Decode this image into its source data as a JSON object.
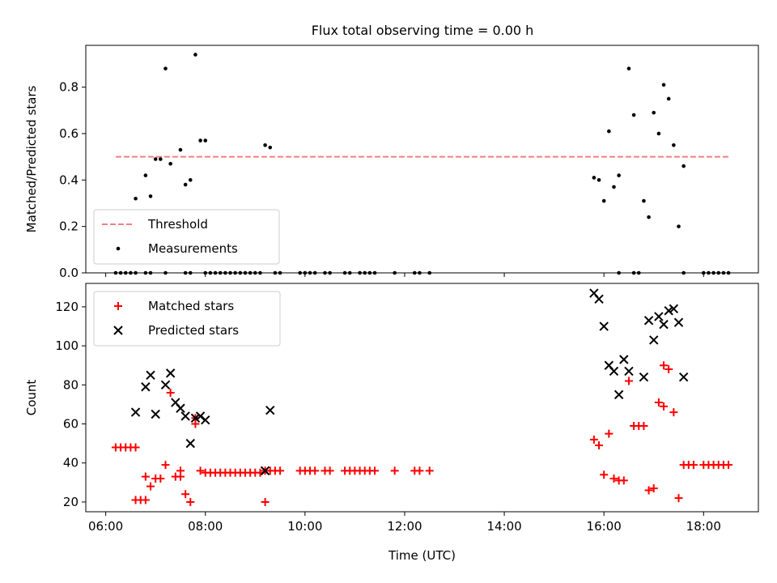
{
  "title": "Flux total observing time = 0.00 h",
  "chart_data": [
    {
      "type": "scatter",
      "title": "Flux total observing time = 0.00 h",
      "ylabel": "Matched/Predicted stars",
      "xlabel": "",
      "xlim": [
        "05:36",
        "19:06"
      ],
      "ylim": [
        0,
        0.98
      ],
      "x_ticks": [
        "06:00",
        "08:00",
        "10:00",
        "12:00",
        "14:00",
        "16:00",
        "18:00"
      ],
      "y_ticks": [
        "0.0",
        "0.2",
        "0.4",
        "0.6",
        "0.8"
      ],
      "grid": false,
      "legend_position": "lower left",
      "threshold": {
        "name": "Threshold",
        "value": 0.5,
        "x_range": [
          "06:12",
          "18:30"
        ],
        "color": "#f08080",
        "style": "dashed"
      },
      "series": [
        {
          "name": "Measurements",
          "marker": "dot",
          "color": "#000000",
          "points": [
            [
              "06:36",
              0.32
            ],
            [
              "06:48",
              0.42
            ],
            [
              "06:54",
              0.33
            ],
            [
              "07:00",
              0.49
            ],
            [
              "07:06",
              0.49
            ],
            [
              "07:12",
              0.88
            ],
            [
              "07:18",
              0.47
            ],
            [
              "07:30",
              0.53
            ],
            [
              "07:36",
              0.38
            ],
            [
              "07:42",
              0.4
            ],
            [
              "07:48",
              0.94
            ],
            [
              "07:54",
              0.57
            ],
            [
              "08:00",
              0.57
            ],
            [
              "09:12",
              0.55
            ],
            [
              "09:18",
              0.54
            ],
            [
              "15:48",
              0.41
            ],
            [
              "15:54",
              0.4
            ],
            [
              "16:00",
              0.31
            ],
            [
              "16:06",
              0.61
            ],
            [
              "16:12",
              0.37
            ],
            [
              "16:18",
              0.42
            ],
            [
              "16:30",
              0.88
            ],
            [
              "16:36",
              0.68
            ],
            [
              "16:48",
              0.31
            ],
            [
              "16:54",
              0.24
            ],
            [
              "17:00",
              0.69
            ],
            [
              "17:06",
              0.6
            ],
            [
              "17:12",
              0.81
            ],
            [
              "17:18",
              0.75
            ],
            [
              "17:24",
              0.55
            ],
            [
              "17:30",
              0.2
            ],
            [
              "17:36",
              0.46
            ],
            [
              "06:12",
              0.0
            ],
            [
              "06:18",
              0.0
            ],
            [
              "06:24",
              0.0
            ],
            [
              "06:30",
              0.0
            ],
            [
              "06:36",
              0.0
            ],
            [
              "06:48",
              0.0
            ],
            [
              "06:54",
              0.0
            ],
            [
              "07:12",
              0.0
            ],
            [
              "07:36",
              0.0
            ],
            [
              "07:42",
              0.0
            ],
            [
              "08:00",
              0.0
            ],
            [
              "08:06",
              0.0
            ],
            [
              "08:12",
              0.0
            ],
            [
              "08:18",
              0.0
            ],
            [
              "08:24",
              0.0
            ],
            [
              "08:30",
              0.0
            ],
            [
              "08:36",
              0.0
            ],
            [
              "08:42",
              0.0
            ],
            [
              "08:48",
              0.0
            ],
            [
              "08:54",
              0.0
            ],
            [
              "09:00",
              0.0
            ],
            [
              "09:06",
              0.0
            ],
            [
              "09:24",
              0.0
            ],
            [
              "09:30",
              0.0
            ],
            [
              "09:54",
              0.0
            ],
            [
              "10:00",
              0.0
            ],
            [
              "10:06",
              0.0
            ],
            [
              "10:12",
              0.0
            ],
            [
              "10:24",
              0.0
            ],
            [
              "10:30",
              0.0
            ],
            [
              "10:48",
              0.0
            ],
            [
              "10:54",
              0.0
            ],
            [
              "11:06",
              0.0
            ],
            [
              "11:12",
              0.0
            ],
            [
              "11:18",
              0.0
            ],
            [
              "11:24",
              0.0
            ],
            [
              "11:48",
              0.0
            ],
            [
              "12:12",
              0.0
            ],
            [
              "12:18",
              0.0
            ],
            [
              "12:30",
              0.0
            ],
            [
              "16:18",
              0.0
            ],
            [
              "16:36",
              0.0
            ],
            [
              "16:42",
              0.0
            ],
            [
              "17:36",
              0.0
            ],
            [
              "18:00",
              0.0
            ],
            [
              "18:06",
              0.0
            ],
            [
              "18:12",
              0.0
            ],
            [
              "18:18",
              0.0
            ],
            [
              "18:24",
              0.0
            ],
            [
              "18:30",
              0.0
            ]
          ]
        }
      ]
    },
    {
      "type": "scatter",
      "title": "",
      "ylabel": "Count",
      "xlabel": "Time (UTC)",
      "xlim": [
        "05:36",
        "19:06"
      ],
      "ylim": [
        15,
        132
      ],
      "x_ticks": [
        "06:00",
        "08:00",
        "10:00",
        "12:00",
        "14:00",
        "16:00",
        "18:00"
      ],
      "y_ticks": [
        "20",
        "40",
        "60",
        "80",
        "100",
        "120"
      ],
      "grid": false,
      "legend_position": "upper left",
      "series": [
        {
          "name": "Matched stars",
          "marker": "plus",
          "color": "#ff0000",
          "points": [
            [
              "06:12",
              48
            ],
            [
              "06:18",
              48
            ],
            [
              "06:24",
              48
            ],
            [
              "06:30",
              48
            ],
            [
              "06:36",
              48
            ],
            [
              "06:36",
              21
            ],
            [
              "06:42",
              21
            ],
            [
              "06:48",
              21
            ],
            [
              "06:48",
              33
            ],
            [
              "06:54",
              28
            ],
            [
              "07:00",
              32
            ],
            [
              "07:06",
              32
            ],
            [
              "07:12",
              39
            ],
            [
              "07:18",
              76
            ],
            [
              "07:24",
              33
            ],
            [
              "07:30",
              33
            ],
            [
              "07:30",
              36
            ],
            [
              "07:36",
              24
            ],
            [
              "07:42",
              20
            ],
            [
              "07:48",
              60
            ],
            [
              "07:48",
              63
            ],
            [
              "07:54",
              36
            ],
            [
              "08:00",
              35
            ],
            [
              "08:06",
              35
            ],
            [
              "08:12",
              35
            ],
            [
              "08:18",
              35
            ],
            [
              "08:24",
              35
            ],
            [
              "08:30",
              35
            ],
            [
              "08:36",
              35
            ],
            [
              "08:42",
              35
            ],
            [
              "08:48",
              35
            ],
            [
              "08:54",
              35
            ],
            [
              "09:00",
              35
            ],
            [
              "09:06",
              35
            ],
            [
              "09:12",
              36
            ],
            [
              "09:12",
              20
            ],
            [
              "09:18",
              36
            ],
            [
              "09:24",
              36
            ],
            [
              "09:30",
              36
            ],
            [
              "09:54",
              36
            ],
            [
              "10:00",
              36
            ],
            [
              "10:06",
              36
            ],
            [
              "10:12",
              36
            ],
            [
              "10:24",
              36
            ],
            [
              "10:30",
              36
            ],
            [
              "10:48",
              36
            ],
            [
              "10:54",
              36
            ],
            [
              "11:00",
              36
            ],
            [
              "11:06",
              36
            ],
            [
              "11:12",
              36
            ],
            [
              "11:18",
              36
            ],
            [
              "11:24",
              36
            ],
            [
              "11:48",
              36
            ],
            [
              "12:12",
              36
            ],
            [
              "12:18",
              36
            ],
            [
              "12:30",
              36
            ],
            [
              "15:48",
              52
            ],
            [
              "15:54",
              49
            ],
            [
              "16:00",
              34
            ],
            [
              "16:06",
              55
            ],
            [
              "16:12",
              32
            ],
            [
              "16:18",
              31
            ],
            [
              "16:24",
              31
            ],
            [
              "16:30",
              82
            ],
            [
              "16:36",
              59
            ],
            [
              "16:42",
              59
            ],
            [
              "16:48",
              59
            ],
            [
              "16:54",
              26
            ],
            [
              "17:00",
              27
            ],
            [
              "17:06",
              71
            ],
            [
              "17:12",
              69
            ],
            [
              "17:12",
              90
            ],
            [
              "17:18",
              88
            ],
            [
              "17:24",
              66
            ],
            [
              "17:30",
              22
            ],
            [
              "17:36",
              39
            ],
            [
              "17:42",
              39
            ],
            [
              "17:48",
              39
            ],
            [
              "18:00",
              39
            ],
            [
              "18:06",
              39
            ],
            [
              "18:12",
              39
            ],
            [
              "18:18",
              39
            ],
            [
              "18:24",
              39
            ],
            [
              "18:30",
              39
            ]
          ]
        },
        {
          "name": "Predicted stars",
          "marker": "x",
          "color": "#000000",
          "points": [
            [
              "06:36",
              66
            ],
            [
              "06:48",
              79
            ],
            [
              "06:54",
              85
            ],
            [
              "07:00",
              65
            ],
            [
              "07:12",
              80
            ],
            [
              "07:18",
              86
            ],
            [
              "07:24",
              71
            ],
            [
              "07:30",
              68
            ],
            [
              "07:36",
              64
            ],
            [
              "07:42",
              50
            ],
            [
              "07:48",
              63
            ],
            [
              "07:54",
              64
            ],
            [
              "08:00",
              62
            ],
            [
              "09:12",
              36
            ],
            [
              "09:18",
              67
            ],
            [
              "15:48",
              127
            ],
            [
              "15:54",
              124
            ],
            [
              "16:00",
              110
            ],
            [
              "16:06",
              90
            ],
            [
              "16:12",
              87
            ],
            [
              "16:18",
              75
            ],
            [
              "16:24",
              93
            ],
            [
              "16:30",
              87
            ],
            [
              "16:48",
              84
            ],
            [
              "16:54",
              113
            ],
            [
              "17:00",
              103
            ],
            [
              "17:06",
              115
            ],
            [
              "17:12",
              111
            ],
            [
              "17:18",
              118
            ],
            [
              "17:24",
              119
            ],
            [
              "17:30",
              112
            ],
            [
              "17:36",
              84
            ]
          ]
        }
      ]
    }
  ]
}
